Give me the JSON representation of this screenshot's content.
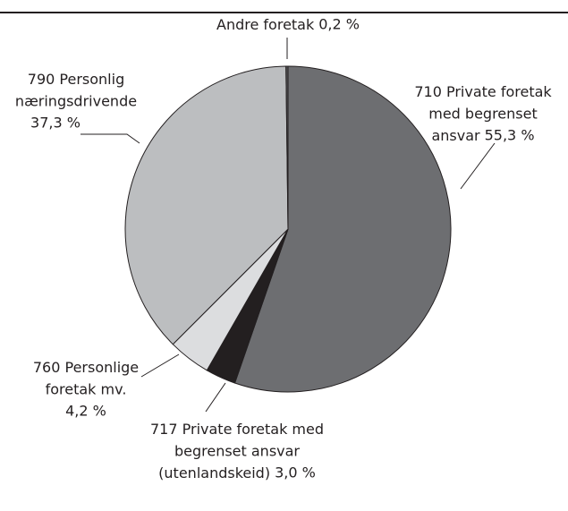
{
  "chart_data": {
    "type": "pie",
    "categories": [
      "710 Private foretak\nmed begrenset\nansvar",
      "717 Private foretak med\nbegrenset ansvar\n(utenlandskeid)",
      "760 Personlige\nforetak mv.",
      "790 Personlig\nnæringsdrivende",
      "Andre foretak"
    ],
    "values": [
      55.3,
      3.0,
      4.2,
      37.3,
      0.2
    ],
    "value_labels": [
      "55,3 %",
      "3,0 %",
      "4,2 %",
      "37,3 %",
      "0,2 %"
    ],
    "colors": [
      "#6d6e71",
      "#231f20",
      "#dcdddf",
      "#bcbec0",
      "#58595b"
    ]
  }
}
